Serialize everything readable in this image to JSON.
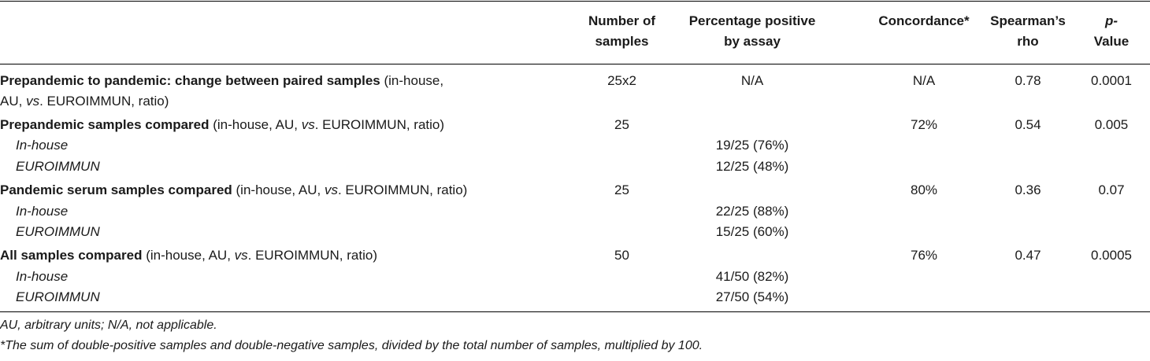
{
  "headers": {
    "num_samples": [
      "Number of",
      "samples"
    ],
    "pct_positive": [
      "Percentage positive",
      "by assay"
    ],
    "concordance": "Concordance*",
    "spearman": [
      "Spearman’s",
      "rho"
    ],
    "pvalue": [
      "p-",
      "Value"
    ]
  },
  "rows": [
    {
      "bold1": "Prepandemic to pandemic: change between paired samples",
      "rest1a": " (in-house,",
      "line2": "AU, ",
      "vs": "vs",
      "line2b": ". EUROIMMUN, ratio)",
      "n": "25x2",
      "pct": "N/A",
      "conc": "N/A",
      "rho": "0.78",
      "p": "0.0001"
    },
    {
      "bold": "Prepandemic samples compared",
      "pre": " (in-house, AU, ",
      "vs": "vs",
      "post": ". EUROIMMUN, ratio)",
      "n": "25",
      "conc": "72%",
      "rho": "0.54",
      "p": "0.005",
      "subs": [
        {
          "label": "In-house",
          "pct": "19/25 (76%)"
        },
        {
          "label": "EUROIMMUN",
          "pct": "12/25 (48%)"
        }
      ]
    },
    {
      "bold": "Pandemic serum samples compared",
      "pre": " (in-house, AU, ",
      "vs": "vs",
      "post": ". EUROIMMUN, ratio)",
      "n": "25",
      "conc": "80%",
      "rho": "0.36",
      "p": "0.07",
      "subs": [
        {
          "label": "In-house",
          "pct": "22/25 (88%)"
        },
        {
          "label": "EUROIMMUN",
          "pct": "15/25 (60%)"
        }
      ]
    },
    {
      "bold": "All samples compared",
      "pre": " (in-house, AU, ",
      "vs": "vs",
      "post": ". EUROIMMUN, ratio)",
      "n": "50",
      "conc": "76%",
      "rho": "0.47",
      "p": "0.0005",
      "subs": [
        {
          "label": "In-house",
          "pct": "41/50 (82%)"
        },
        {
          "label": "EUROIMMUN",
          "pct": "27/50 (54%)"
        }
      ]
    }
  ],
  "footnotes": [
    "AU, arbitrary units; N/A, not applicable.",
    "*The sum of double-positive samples and double-negative samples, divided by the total number of samples, multiplied by 100."
  ]
}
